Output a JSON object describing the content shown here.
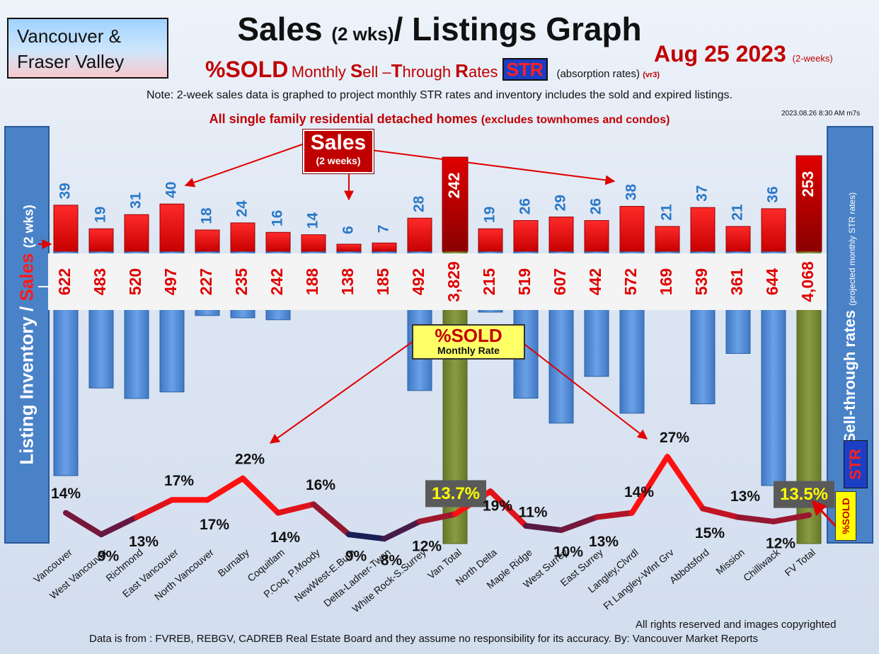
{
  "header": {
    "region_line1": "Vancouver &",
    "region_line2": "Fraser Valley",
    "title_main": "Sales ",
    "title_paren": "(2 wks)",
    "title_rest": "/ Listings Graph",
    "date": "Aug 25  2023",
    "date_note": "(2-weeks)",
    "subtitle_big": "%SOLD",
    "subtitle_s1": "Monthly ",
    "subtitle_b1": "S",
    "subtitle_s2": "ell –",
    "subtitle_b2": "T",
    "subtitle_s3": "hrough ",
    "subtitle_b3": "R",
    "subtitle_s4": "ates ",
    "subtitle_str": "STR",
    "absorption": "(absorption rates)",
    "version": "(vr3)",
    "note": "Note: 2-week sales data is graphed to project monthly STR rates and inventory includes the sold and expired listings.",
    "single_family": "All single family residential detached homes",
    "single_family_paren": "(excludes townhomes and condos)",
    "timestamp": "2023.08.26 8:30 AM m7s"
  },
  "left_axis": {
    "part1": "Listing Inventory / ",
    "part2": "Sales",
    "part3": "(2 wks)"
  },
  "right_axis": {
    "label": "Sell-through rates",
    "sub": "(projected monthly STR rates)"
  },
  "callouts": {
    "sales_big": "Sales",
    "sales_small": "(2 weeks)",
    "sold_big": "%SOLD",
    "sold_small": "Monthly Rate",
    "badge_pct": "%SOLD",
    "badge_str": "STR"
  },
  "footer": {
    "rights": "All rights reserved and  images copyrighted",
    "source": "Data is from : FVREB, REBGV, CADREB Real Estate Board and they assume no responsibility for its accuracy. By: Vancouver Market Reports"
  },
  "colors": {
    "sales": "#e00000",
    "inventory": "#5a8fd6",
    "total": "#7a8c35",
    "line_high": "#ff1010",
    "line_low": "#0a1f5c"
  },
  "chart_data": {
    "type": "bar",
    "categories": [
      "Vancouver",
      "West Vancouver",
      "Richmond",
      "East Vancouver",
      "North Vancouver",
      "Burnaby",
      "Coquitlam",
      "P.Coq, P.Moody",
      "NewWest-E.Burn",
      "Delta-Ladner-Twsn",
      "White Rock-S.Surrey",
      "Van Total",
      "North Delta",
      "Maple Ridge",
      "West Surrey",
      "East Surrey",
      "Langley,Clvrdl",
      "Ft Langley-Wlnt Grv",
      "Abbotsford",
      "Mission",
      "Chilliwack",
      "FV Total"
    ],
    "sales": [
      39,
      19,
      31,
      40,
      18,
      24,
      16,
      14,
      6,
      7,
      28,
      242,
      19,
      26,
      29,
      26,
      38,
      21,
      37,
      21,
      36,
      253
    ],
    "inventory_labels": [
      "622",
      "483",
      "520",
      "497",
      "227",
      "235",
      "242",
      "188",
      "138",
      "185",
      "492",
      "3,829",
      "215",
      "519",
      "607",
      "442",
      "572",
      "169",
      "539",
      "361",
      "644",
      "4,068"
    ],
    "inventory": [
      622,
      483,
      520,
      497,
      227,
      235,
      242,
      188,
      138,
      185,
      492,
      3829,
      215,
      519,
      607,
      442,
      572,
      169,
      539,
      361,
      644,
      4068
    ],
    "str_labels": [
      "14%",
      "9%",
      "13%",
      "17%",
      "17%",
      "22%",
      "14%",
      "16%",
      "9%",
      "8%",
      "12%",
      "13.7%",
      "19%",
      "11%",
      "10%",
      "13%",
      "14%",
      "27%",
      "15%",
      "13%",
      "12%",
      "13.5%"
    ],
    "str": [
      14,
      9,
      13,
      17,
      17,
      22,
      14,
      16,
      9,
      8,
      12,
      13.7,
      19,
      11,
      10,
      13,
      14,
      27,
      15,
      13,
      12,
      13.5
    ],
    "totals": [
      "Van Total",
      "FV Total"
    ]
  }
}
